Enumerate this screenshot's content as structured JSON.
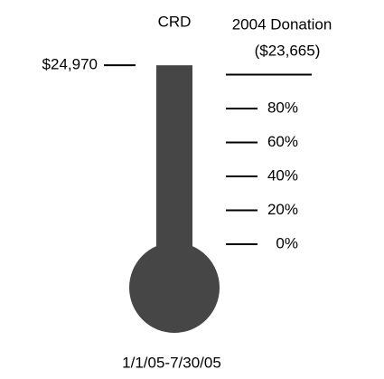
{
  "chart_data": {
    "type": "thermometer",
    "title": "CRD",
    "value": 24970,
    "value_label": "$24,970",
    "goal_title": "2004 Donation",
    "goal": 23665,
    "goal_label": "($23,665)",
    "yticks": [
      {
        "value": 0,
        "label": "0%"
      },
      {
        "value": 20,
        "label": "20%"
      },
      {
        "value": 40,
        "label": "40%"
      },
      {
        "value": 60,
        "label": "60%"
      },
      {
        "value": 80,
        "label": "80%"
      }
    ],
    "xlabel": "1/1/05-7/30/05",
    "color": "#464646"
  }
}
